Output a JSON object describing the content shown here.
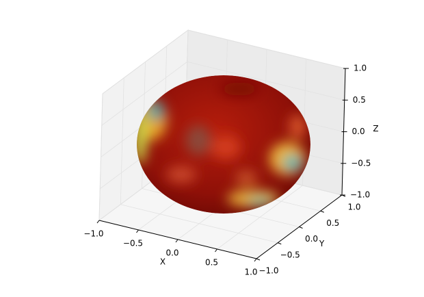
{
  "chart_data": {
    "type": "surface3d",
    "xlabel": "X",
    "ylabel": "Y",
    "zlabel": "Z",
    "xlim": [
      -1,
      1
    ],
    "ylim": [
      -1,
      1
    ],
    "zlim": [
      -1,
      1
    ],
    "xticks": [
      {
        "value": -1,
        "label": "−1.0"
      },
      {
        "value": -0.5,
        "label": "−0.5"
      },
      {
        "value": 0,
        "label": "0.0"
      },
      {
        "value": 0.5,
        "label": "0.5"
      },
      {
        "value": 1,
        "label": "1.0"
      }
    ],
    "yticks": [
      {
        "value": -1,
        "label": "−1.0"
      },
      {
        "value": -0.5,
        "label": "−0.5"
      },
      {
        "value": 0,
        "label": "0.0"
      },
      {
        "value": 0.5,
        "label": "0.5"
      },
      {
        "value": 1,
        "label": "1.0"
      }
    ],
    "zticks": [
      {
        "value": -1,
        "label": "−1.0"
      },
      {
        "value": -0.5,
        "label": "−0.5"
      },
      {
        "value": 0,
        "label": "0.0"
      },
      {
        "value": 0.5,
        "label": "0.5"
      },
      {
        "value": 1,
        "label": "1.0"
      }
    ],
    "grid": true
  }
}
